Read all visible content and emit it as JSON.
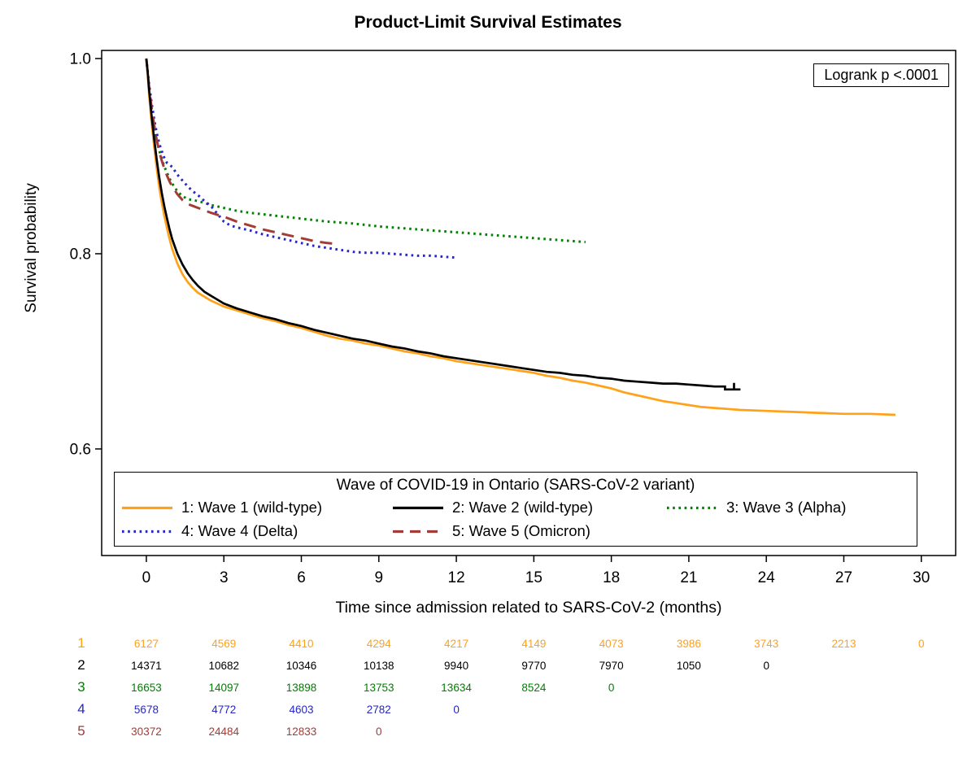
{
  "chart_data": {
    "type": "line",
    "subtype": "kaplan-meier-survival",
    "title": "Product-Limit Survival Estimates",
    "annotation": "Logrank p <.0001",
    "xlabel": "Time since admission related to SARS-CoV-2 (months)",
    "ylabel": "Survival probability",
    "grid": false,
    "legend_title": "Wave of COVID-19 in Ontario (SARS-CoV-2 variant)",
    "legend_position": "bottom-inside",
    "x_axis": {
      "ticks": [
        0,
        3,
        6,
        9,
        12,
        15,
        18,
        21,
        24,
        27,
        30
      ],
      "range": [
        0,
        30
      ]
    },
    "y_axis": {
      "ticks": [
        1.0,
        0.8,
        0.6
      ],
      "tick_labels": [
        "1.0",
        "0.8",
        "0.6"
      ],
      "range": [
        0.49,
        1.0
      ]
    },
    "series": [
      {
        "id": "wave1",
        "name": "1: Wave 1 (wild-type)",
        "color": "#FFA119",
        "style": "solid",
        "points": [
          [
            0,
            1.0
          ],
          [
            0.05,
            0.985
          ],
          [
            0.1,
            0.965
          ],
          [
            0.2,
            0.935
          ],
          [
            0.3,
            0.91
          ],
          [
            0.4,
            0.888
          ],
          [
            0.5,
            0.868
          ],
          [
            0.6,
            0.852
          ],
          [
            0.7,
            0.838
          ],
          [
            0.8,
            0.826
          ],
          [
            0.9,
            0.815
          ],
          [
            1,
            0.805
          ],
          [
            1.2,
            0.79
          ],
          [
            1.4,
            0.779
          ],
          [
            1.6,
            0.771
          ],
          [
            1.8,
            0.765
          ],
          [
            2,
            0.76
          ],
          [
            2.25,
            0.756
          ],
          [
            2.5,
            0.752
          ],
          [
            2.75,
            0.749
          ],
          [
            3,
            0.746
          ],
          [
            3.5,
            0.742
          ],
          [
            4,
            0.738
          ],
          [
            4.5,
            0.734
          ],
          [
            5,
            0.731
          ],
          [
            5.5,
            0.727
          ],
          [
            6,
            0.724
          ],
          [
            6.5,
            0.72
          ],
          [
            7,
            0.716
          ],
          [
            7.5,
            0.713
          ],
          [
            8,
            0.711
          ],
          [
            8.5,
            0.708
          ],
          [
            9,
            0.706
          ],
          [
            9.5,
            0.703
          ],
          [
            10,
            0.7
          ],
          [
            10.5,
            0.698
          ],
          [
            11,
            0.695
          ],
          [
            11.5,
            0.693
          ],
          [
            12,
            0.69
          ],
          [
            12.5,
            0.688
          ],
          [
            13,
            0.686
          ],
          [
            13.5,
            0.684
          ],
          [
            14,
            0.682
          ],
          [
            14.5,
            0.68
          ],
          [
            15,
            0.678
          ],
          [
            15.5,
            0.675
          ],
          [
            16,
            0.673
          ],
          [
            16.5,
            0.67
          ],
          [
            17,
            0.668
          ],
          [
            17.5,
            0.665
          ],
          [
            18,
            0.662
          ],
          [
            18.5,
            0.658
          ],
          [
            19,
            0.655
          ],
          [
            19.5,
            0.652
          ],
          [
            20,
            0.649
          ],
          [
            20.5,
            0.647
          ],
          [
            21,
            0.645
          ],
          [
            21.5,
            0.643
          ],
          [
            22,
            0.642
          ],
          [
            22.5,
            0.641
          ],
          [
            23,
            0.64
          ],
          [
            24,
            0.639
          ],
          [
            25,
            0.638
          ],
          [
            26,
            0.637
          ],
          [
            27,
            0.636
          ],
          [
            28,
            0.636
          ],
          [
            29,
            0.635
          ]
        ]
      },
      {
        "id": "wave2",
        "name": "2: Wave 2 (wild-type)",
        "color": "#000000",
        "style": "solid",
        "censor": [
          [
            22.75,
            0.661
          ]
        ],
        "points": [
          [
            0,
            1.0
          ],
          [
            0.05,
            0.987
          ],
          [
            0.1,
            0.97
          ],
          [
            0.2,
            0.942
          ],
          [
            0.3,
            0.918
          ],
          [
            0.4,
            0.897
          ],
          [
            0.5,
            0.878
          ],
          [
            0.6,
            0.862
          ],
          [
            0.7,
            0.848
          ],
          [
            0.8,
            0.836
          ],
          [
            0.9,
            0.825
          ],
          [
            1,
            0.815
          ],
          [
            1.2,
            0.8
          ],
          [
            1.4,
            0.789
          ],
          [
            1.6,
            0.78
          ],
          [
            1.8,
            0.773
          ],
          [
            2,
            0.767
          ],
          [
            2.25,
            0.761
          ],
          [
            2.5,
            0.757
          ],
          [
            2.75,
            0.753
          ],
          [
            3,
            0.749
          ],
          [
            3.5,
            0.744
          ],
          [
            4,
            0.74
          ],
          [
            4.5,
            0.736
          ],
          [
            5,
            0.733
          ],
          [
            5.5,
            0.729
          ],
          [
            6,
            0.726
          ],
          [
            6.5,
            0.722
          ],
          [
            7,
            0.719
          ],
          [
            7.5,
            0.716
          ],
          [
            8,
            0.713
          ],
          [
            8.5,
            0.711
          ],
          [
            9,
            0.708
          ],
          [
            9.5,
            0.705
          ],
          [
            10,
            0.703
          ],
          [
            10.5,
            0.7
          ],
          [
            11,
            0.698
          ],
          [
            11.5,
            0.695
          ],
          [
            12,
            0.693
          ],
          [
            12.5,
            0.691
          ],
          [
            13,
            0.689
          ],
          [
            13.5,
            0.687
          ],
          [
            14,
            0.685
          ],
          [
            14.5,
            0.683
          ],
          [
            15,
            0.681
          ],
          [
            15.5,
            0.679
          ],
          [
            16,
            0.678
          ],
          [
            16.5,
            0.676
          ],
          [
            17,
            0.675
          ],
          [
            17.5,
            0.673
          ],
          [
            18,
            0.672
          ],
          [
            18.5,
            0.67
          ],
          [
            19,
            0.669
          ],
          [
            19.5,
            0.668
          ],
          [
            20,
            0.667
          ],
          [
            20.5,
            0.667
          ],
          [
            21,
            0.666
          ],
          [
            21.5,
            0.665
          ],
          [
            22,
            0.664
          ],
          [
            22.4,
            0.664
          ],
          [
            22.4,
            0.661
          ],
          [
            23,
            0.661
          ]
        ]
      },
      {
        "id": "wave3",
        "name": "3: Wave 3 (Alpha)",
        "color": "#018001",
        "style": "dot",
        "points": [
          [
            0,
            1.0
          ],
          [
            0.1,
            0.972
          ],
          [
            0.2,
            0.95
          ],
          [
            0.3,
            0.932
          ],
          [
            0.4,
            0.917
          ],
          [
            0.5,
            0.906
          ],
          [
            0.6,
            0.897
          ],
          [
            0.7,
            0.889
          ],
          [
            0.8,
            0.883
          ],
          [
            0.9,
            0.877
          ],
          [
            1,
            0.872
          ],
          [
            1.2,
            0.864
          ],
          [
            1.4,
            0.859
          ],
          [
            1.6,
            0.856
          ],
          [
            1.8,
            0.855
          ],
          [
            2,
            0.854
          ],
          [
            2.5,
            0.85
          ],
          [
            3,
            0.847
          ],
          [
            3.5,
            0.844
          ],
          [
            4,
            0.842
          ],
          [
            5,
            0.839
          ],
          [
            6,
            0.836
          ],
          [
            7,
            0.833
          ],
          [
            8,
            0.831
          ],
          [
            9,
            0.828
          ],
          [
            10,
            0.826
          ],
          [
            11,
            0.824
          ],
          [
            12,
            0.822
          ],
          [
            13,
            0.82
          ],
          [
            14,
            0.818
          ],
          [
            15,
            0.816
          ],
          [
            16,
            0.814
          ],
          [
            16.5,
            0.813
          ],
          [
            17,
            0.812
          ]
        ]
      },
      {
        "id": "wave4",
        "name": "4: Wave 4 (Delta)",
        "color": "#2626CC",
        "style": "dot",
        "points": [
          [
            0,
            1.0
          ],
          [
            0.1,
            0.975
          ],
          [
            0.2,
            0.955
          ],
          [
            0.3,
            0.938
          ],
          [
            0.4,
            0.924
          ],
          [
            0.5,
            0.913
          ],
          [
            0.6,
            0.905
          ],
          [
            0.7,
            0.898
          ],
          [
            0.8,
            0.893
          ],
          [
            0.9,
            0.891
          ],
          [
            1,
            0.889
          ],
          [
            1.2,
            0.881
          ],
          [
            1.4,
            0.875
          ],
          [
            1.6,
            0.869
          ],
          [
            1.8,
            0.864
          ],
          [
            2,
            0.86
          ],
          [
            2.25,
            0.854
          ],
          [
            2.5,
            0.849
          ],
          [
            2.75,
            0.841
          ],
          [
            3,
            0.833
          ],
          [
            3.25,
            0.829
          ],
          [
            3.5,
            0.827
          ],
          [
            4,
            0.824
          ],
          [
            4.5,
            0.82
          ],
          [
            5,
            0.817
          ],
          [
            5.5,
            0.814
          ],
          [
            6,
            0.811
          ],
          [
            6.5,
            0.808
          ],
          [
            7,
            0.806
          ],
          [
            7.5,
            0.804
          ],
          [
            8,
            0.802
          ],
          [
            8.5,
            0.801
          ],
          [
            9,
            0.801
          ],
          [
            9.5,
            0.8
          ],
          [
            10,
            0.799
          ],
          [
            10.5,
            0.798
          ],
          [
            11,
            0.798
          ],
          [
            11.5,
            0.797
          ],
          [
            12,
            0.796
          ]
        ]
      },
      {
        "id": "wave5",
        "name": "5: Wave 5 (Omicron)",
        "color": "#A33C36",
        "style": "longdash",
        "points": [
          [
            0,
            1.0
          ],
          [
            0.1,
            0.972
          ],
          [
            0.2,
            0.95
          ],
          [
            0.3,
            0.932
          ],
          [
            0.4,
            0.917
          ],
          [
            0.5,
            0.905
          ],
          [
            0.6,
            0.895
          ],
          [
            0.7,
            0.887
          ],
          [
            0.8,
            0.88
          ],
          [
            0.9,
            0.874
          ],
          [
            1,
            0.869
          ],
          [
            1.2,
            0.861
          ],
          [
            1.4,
            0.855
          ],
          [
            1.6,
            0.851
          ],
          [
            1.8,
            0.849
          ],
          [
            2,
            0.847
          ],
          [
            2.5,
            0.842
          ],
          [
            3,
            0.838
          ],
          [
            3.5,
            0.833
          ],
          [
            4,
            0.829
          ],
          [
            4.5,
            0.825
          ],
          [
            5,
            0.822
          ],
          [
            5.5,
            0.819
          ],
          [
            6,
            0.816
          ],
          [
            6.5,
            0.813
          ],
          [
            7,
            0.811
          ],
          [
            7.4,
            0.81
          ]
        ]
      }
    ],
    "risk_table": {
      "start_month": 0,
      "step_months": 3,
      "rows": [
        {
          "label": "1",
          "color": "#FFA119",
          "values": [
            6127,
            4569,
            4410,
            4294,
            4217,
            4149,
            4073,
            3986,
            3743,
            2213,
            0
          ]
        },
        {
          "label": "2",
          "color": "#000000",
          "values": [
            14371,
            10682,
            10346,
            10138,
            9940,
            9770,
            7970,
            1050,
            0
          ]
        },
        {
          "label": "3",
          "color": "#018001",
          "values": [
            16653,
            14097,
            13898,
            13753,
            13634,
            8524,
            0
          ]
        },
        {
          "label": "4",
          "color": "#2626CC",
          "values": [
            5678,
            4772,
            4603,
            2782,
            0
          ]
        },
        {
          "label": "5",
          "color": "#A33C36",
          "values": [
            30372,
            24484,
            12833,
            0
          ]
        }
      ]
    }
  }
}
